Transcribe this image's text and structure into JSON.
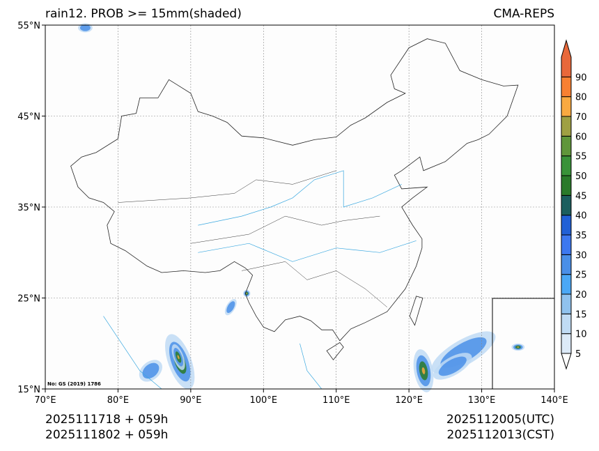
{
  "title_left": "rain12. PROB >= 15mm(shaded)",
  "title_right": "CMA-REPS",
  "map_note": "No: GS (2019) 1786",
  "footer": {
    "left_line1": "2025111718  +  059h",
    "left_line2": "2025111802  +  059h",
    "right_line1": "2025112005(UTC)",
    "right_line2": "2025112013(CST)"
  },
  "axes": {
    "lon_range": [
      70,
      140
    ],
    "lat_range": [
      15,
      55
    ],
    "lon_ticks": [
      {
        "v": 70,
        "label": "70°E"
      },
      {
        "v": 80,
        "label": "80°E"
      },
      {
        "v": 90,
        "label": "90°E"
      },
      {
        "v": 100,
        "label": "100°E"
      },
      {
        "v": 110,
        "label": "110°E"
      },
      {
        "v": 120,
        "label": "120°E"
      },
      {
        "v": 130,
        "label": "130°E"
      },
      {
        "v": 140,
        "label": "140°E"
      }
    ],
    "lat_ticks": [
      {
        "v": 15,
        "label": "15°N"
      },
      {
        "v": 25,
        "label": "25°N"
      },
      {
        "v": 35,
        "label": "35°N"
      },
      {
        "v": 45,
        "label": "45°N"
      },
      {
        "v": 55,
        "label": "55°N"
      }
    ]
  },
  "colorbar": {
    "labels": [
      "5",
      "10",
      "15",
      "20",
      "25",
      "30",
      "35",
      "40",
      "45",
      "50",
      "55",
      "60",
      "70",
      "80",
      "90"
    ],
    "colors": [
      "#dceaf8",
      "#c0dbf4",
      "#90c2ee",
      "#4ba8f6",
      "#4a8fe8",
      "#3d78f0",
      "#2160d6",
      "#1b5e5e",
      "#2a7a2a",
      "#399239",
      "#5f963a",
      "#9fa043",
      "#f9a941",
      "#f88032",
      "#e8683a"
    ],
    "under_color": "#ffffff"
  }
}
